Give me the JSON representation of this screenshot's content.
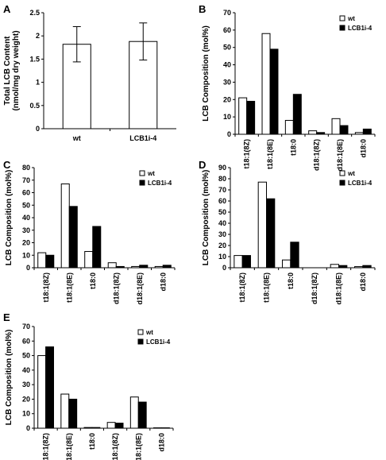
{
  "legend_labels": [
    "wt",
    "LCB1i-4"
  ],
  "colors": {
    "wt": "#ffffff",
    "mutant": "#000000",
    "stroke": "#000000"
  },
  "chart_data": [
    {
      "panel": "A",
      "type": "bar",
      "categories": [
        "wt",
        "LCB1i-4"
      ],
      "values": [
        1.82,
        1.88
      ],
      "errors": [
        0.38,
        0.4
      ],
      "ylabel": "Total LCB Content\n(nmol/mg dry weight)",
      "ylim": [
        0,
        2.5
      ],
      "yticks": [
        "0",
        "0.5",
        "1",
        "1.5",
        "2",
        "2.5"
      ],
      "legend": "none"
    },
    {
      "panel": "B",
      "type": "bar",
      "categories": [
        "t18:1(8Z)",
        "t18:1(8E)",
        "t18:0",
        "d18:1(8Z)",
        "d18:1(8E)",
        "d18:0"
      ],
      "series": [
        {
          "name": "wt",
          "values": [
            21,
            58,
            8,
            2,
            9,
            1
          ]
        },
        {
          "name": "LCB1i-4",
          "values": [
            19,
            49,
            23,
            1,
            5,
            3
          ]
        }
      ],
      "ylabel": "LCB Composition (mol%)",
      "ylim": [
        0,
        70
      ],
      "yticks": [
        "0",
        "10",
        "20",
        "30",
        "40",
        "50",
        "60",
        "70"
      ],
      "legend": "top-right"
    },
    {
      "panel": "C",
      "type": "bar",
      "categories": [
        "t18:1(8Z)",
        "t18:1(8E)",
        "t18:0",
        "d18:1(8Z)",
        "d18:1(8E)",
        "d18:0"
      ],
      "series": [
        {
          "name": "wt",
          "values": [
            12,
            67,
            13,
            4,
            1,
            1
          ]
        },
        {
          "name": "LCB1i-4",
          "values": [
            10,
            49,
            33,
            1,
            2,
            2
          ]
        }
      ],
      "ylabel": "LCB Composition (mol%)",
      "ylim": [
        0,
        80
      ],
      "yticks": [
        "0",
        "10",
        "20",
        "30",
        "40",
        "50",
        "60",
        "70",
        "80"
      ],
      "legend": "top-right"
    },
    {
      "panel": "D",
      "type": "bar",
      "categories": [
        "t18:1(8Z)",
        "t18:1(8E)",
        "t18:0",
        "d18:1(8Z)",
        "d18:1(8E)",
        "d18:0"
      ],
      "series": [
        {
          "name": "wt",
          "values": [
            11,
            77,
            7,
            0,
            3,
            1
          ]
        },
        {
          "name": "LCB1i-4",
          "values": [
            11,
            62,
            23,
            0,
            2,
            2
          ]
        }
      ],
      "ylabel": "LCB Composition (mol%)",
      "ylim": [
        0,
        90
      ],
      "yticks": [
        "0",
        "10",
        "20",
        "30",
        "40",
        "50",
        "60",
        "70",
        "80",
        "90"
      ],
      "legend": "top-right"
    },
    {
      "panel": "E",
      "type": "bar",
      "categories": [
        "t18:1(8Z)",
        "t18:1(8E)",
        "t18:0",
        "d18:1(8Z)",
        "d18:1(8E)",
        "d18:0"
      ],
      "series": [
        {
          "name": "wt",
          "values": [
            50,
            23.5,
            0.5,
            4,
            21.5,
            0.3
          ]
        },
        {
          "name": "LCB1i-4",
          "values": [
            56,
            20,
            0.5,
            3.5,
            18,
            0.3
          ]
        }
      ],
      "ylabel": "LCB Composition (mol%)",
      "ylim": [
        0,
        70
      ],
      "yticks": [
        "0",
        "10",
        "20",
        "30",
        "40",
        "50",
        "60",
        "70"
      ],
      "legend": "top-right"
    }
  ]
}
